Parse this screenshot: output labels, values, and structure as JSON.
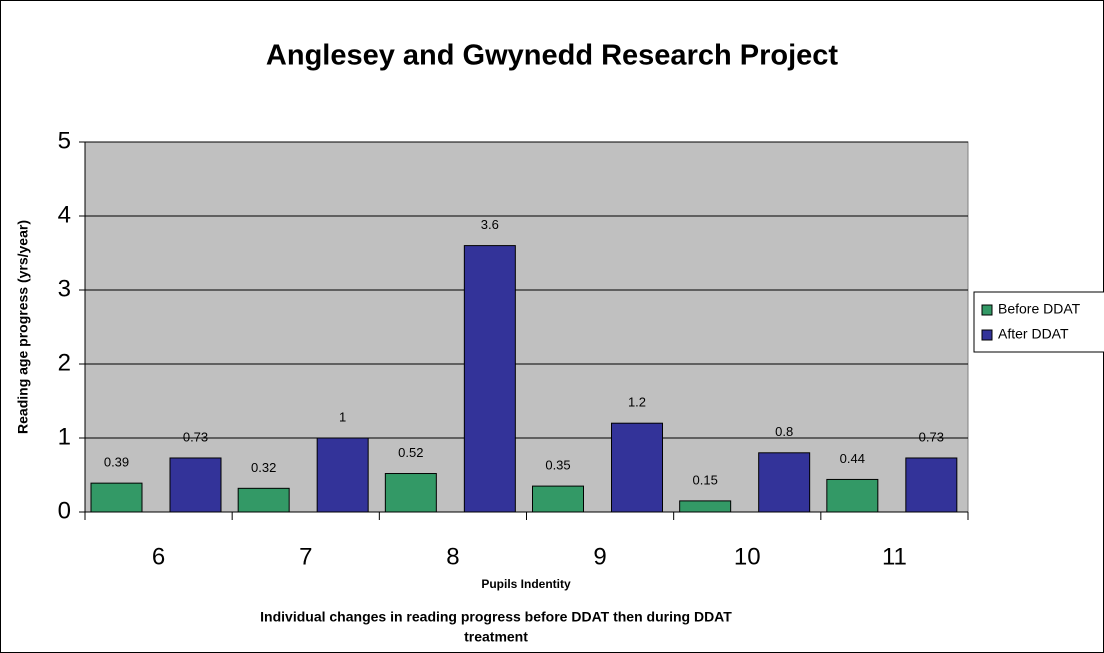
{
  "chart_data": {
    "type": "bar",
    "title": "Anglesey and Gwynedd Research Project",
    "y_label": "Reading age progress (yrs/year)",
    "x_label": "Pupils Indentity",
    "caption_lines": [
      "Individual changes in reading progress before DDAT then during DDAT",
      "treatment"
    ],
    "categories": [
      "6",
      "7",
      "8",
      "9",
      "10",
      "11"
    ],
    "series": [
      {
        "name": "Before DDAT",
        "color": "#339966",
        "values": [
          0.39,
          0.32,
          0.52,
          0.35,
          0.15,
          0.44
        ]
      },
      {
        "name": "After DDAT",
        "color": "#333399",
        "values": [
          0.73,
          1,
          3.6,
          1.2,
          0.8,
          0.73
        ]
      }
    ],
    "ylim": [
      0,
      5
    ],
    "yticks": [
      0,
      1,
      2,
      3,
      4,
      5
    ],
    "grid": true,
    "legend": "right"
  }
}
